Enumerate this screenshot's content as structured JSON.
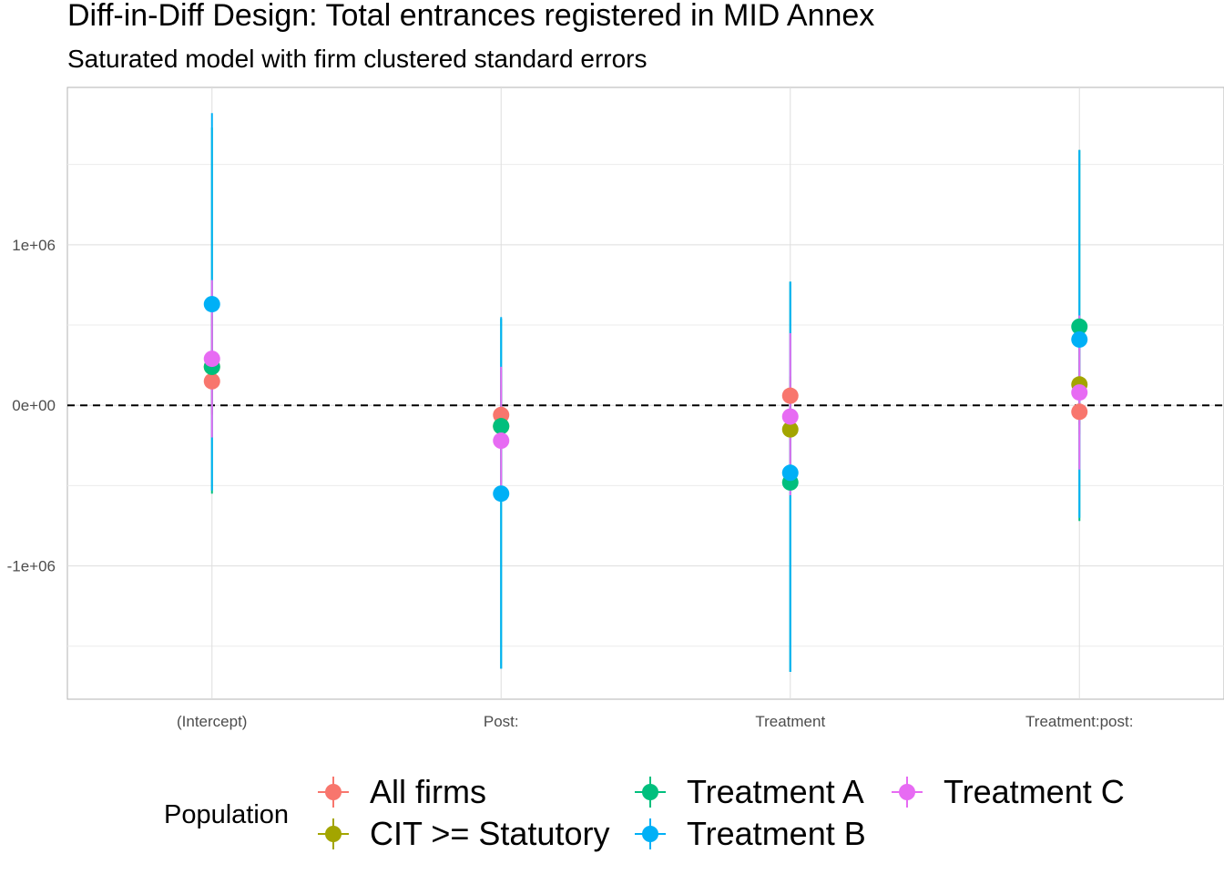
{
  "chart_data": {
    "type": "scatter",
    "title": "Diff-in-Diff Design: Total entrances registered in MID Annex",
    "subtitle": "Saturated model with firm clustered standard errors",
    "xlabel": "",
    "ylabel": "",
    "categories": [
      "(Intercept)",
      "Post:",
      "Treatment",
      "Treatment:post:"
    ],
    "ylim": [
      -1830000,
      1980000
    ],
    "y_ticks": [
      {
        "value": 1000000,
        "label": "1e+06"
      },
      {
        "value": 0,
        "label": "0e+00"
      },
      {
        "value": -1000000,
        "label": "-1e+06"
      }
    ],
    "reference_line": {
      "y": 0,
      "style": "dashed"
    },
    "grid": true,
    "legend": {
      "title": "Population",
      "position": "bottom"
    },
    "series": [
      {
        "name": "All firms",
        "color": "#F8766D",
        "estimates": [
          150000,
          -60000,
          60000,
          -40000
        ],
        "lower": [
          -50000,
          -250000,
          -80000,
          -180000
        ],
        "upper": [
          350000,
          130000,
          160000,
          100000
        ]
      },
      {
        "name": "CIT >= Statutory",
        "color": "#A3A500",
        "estimates": [
          240000,
          -130000,
          -150000,
          130000
        ],
        "lower": [
          -60000,
          -480000,
          -520000,
          -120000
        ],
        "upper": [
          560000,
          220000,
          180000,
          380000
        ]
      },
      {
        "name": "Treatment A",
        "color": "#00BF7D",
        "estimates": [
          240000,
          -130000,
          -480000,
          490000
        ],
        "lower": [
          -550000,
          -1640000,
          -1660000,
          -720000
        ],
        "upper": [
          1730000,
          540000,
          770000,
          1590000
        ]
      },
      {
        "name": "Treatment B",
        "color": "#00B0F6",
        "estimates": [
          630000,
          -550000,
          -420000,
          410000
        ],
        "lower": [
          -530000,
          -1640000,
          -1660000,
          -700000
        ],
        "upper": [
          1820000,
          550000,
          770000,
          1590000
        ]
      },
      {
        "name": "Treatment C",
        "color": "#E76BF3",
        "estimates": [
          290000,
          -220000,
          -70000,
          80000
        ],
        "lower": [
          -200000,
          -600000,
          -560000,
          -400000
        ],
        "upper": [
          780000,
          240000,
          450000,
          560000
        ]
      }
    ]
  }
}
